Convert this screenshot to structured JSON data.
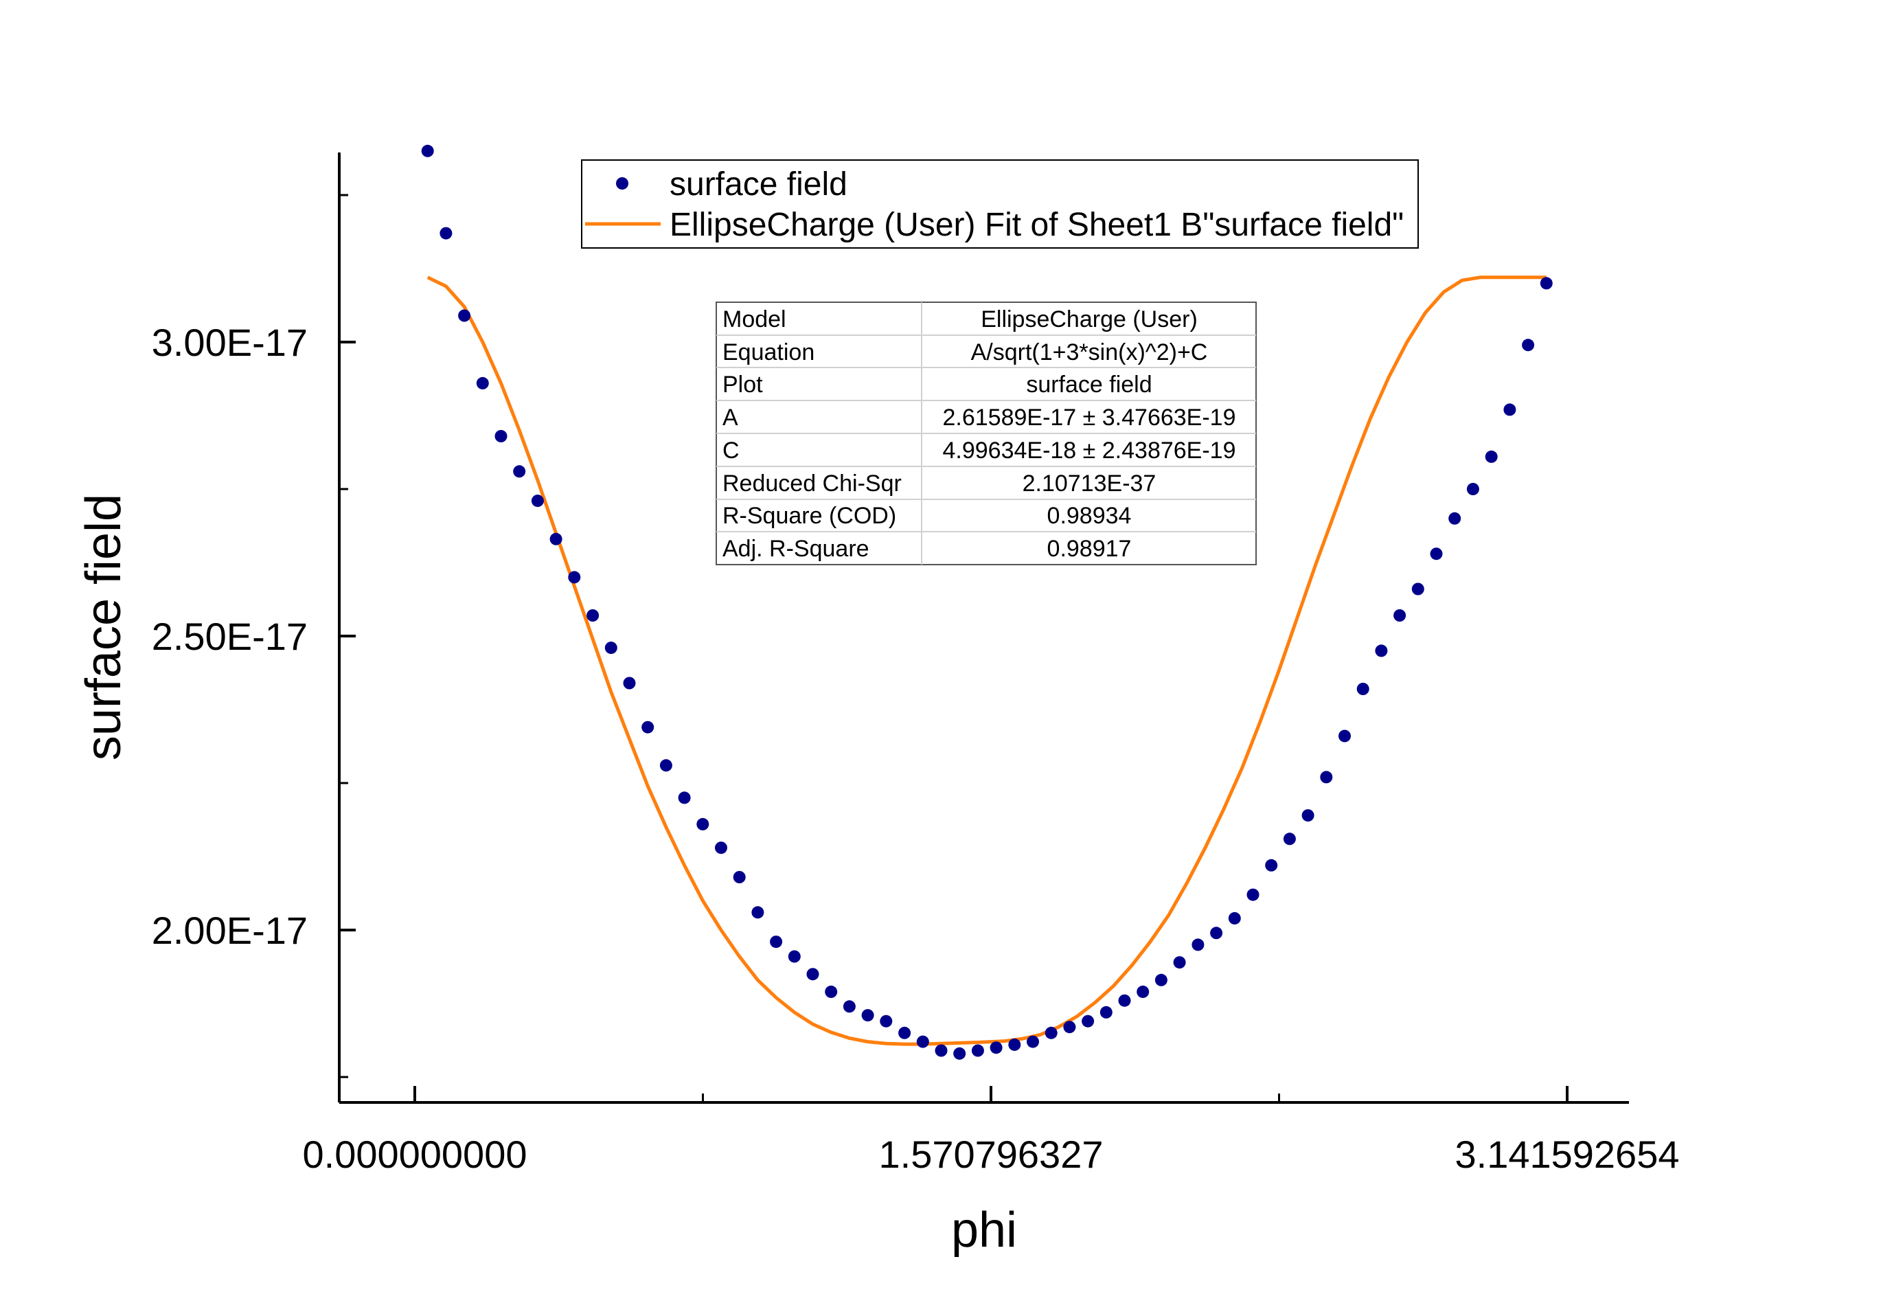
{
  "chart_data": {
    "type": "scatter",
    "xlabel": "phi",
    "ylabel": "surface field",
    "xlim": [
      -0.21,
      3.35
    ],
    "ylim": [
      1.71e-17,
      3.27e-17
    ],
    "x_ticks": [
      0.0,
      1.570796327,
      3.141592654
    ],
    "x_tick_labels": [
      "0.000000000",
      "1.570796327",
      "3.141592654"
    ],
    "x_minor_ticks": [
      0.785398163,
      2.35619449
    ],
    "y_ticks": [
      2e-17,
      2.5e-17,
      3e-17
    ],
    "y_tick_labels": [
      "2.00E-17",
      "2.50E-17",
      "3.00E-17"
    ],
    "y_minor_ticks": [
      1.75e-17,
      2.25e-17,
      2.75e-17,
      3.25e-17
    ],
    "legend": {
      "placement": "top-center",
      "entries": [
        {
          "label": "surface field",
          "kind": "marker",
          "color": "#00008B"
        },
        {
          "label": "EllipseCharge (User) Fit of Sheet1 B\"surface field\"",
          "kind": "line",
          "color": "#FF7F0E"
        }
      ]
    },
    "series": [
      {
        "name": "surface field",
        "kind": "scatter",
        "color": "#00008B",
        "x": [
          0.035,
          0.085,
          0.135,
          0.185,
          0.235,
          0.285,
          0.335,
          0.385,
          0.435,
          0.485,
          0.535,
          0.585,
          0.635,
          0.685,
          0.735,
          0.785,
          0.835,
          0.885,
          0.935,
          0.985,
          1.035,
          1.085,
          1.135,
          1.185,
          1.235,
          1.285,
          1.335,
          1.385,
          1.435,
          1.485,
          1.535,
          1.585,
          1.635,
          1.685,
          1.735,
          1.785,
          1.835,
          1.885,
          1.935,
          1.985,
          2.035,
          2.085,
          2.135,
          2.185,
          2.235,
          2.285,
          2.335,
          2.385,
          2.435,
          2.485,
          2.535,
          2.585,
          2.635,
          2.685,
          2.735,
          2.785,
          2.835,
          2.885,
          2.935,
          2.985,
          3.035,
          3.085
        ],
        "y": [
          3.325e-17,
          3.185e-17,
          3.045e-17,
          2.93e-17,
          2.84e-17,
          2.78e-17,
          2.73e-17,
          2.665e-17,
          2.6e-17,
          2.535e-17,
          2.48e-17,
          2.42e-17,
          2.345e-17,
          2.28e-17,
          2.225e-17,
          2.18e-17,
          2.14e-17,
          2.09e-17,
          2.03e-17,
          1.98e-17,
          1.955e-17,
          1.925e-17,
          1.895e-17,
          1.87e-17,
          1.855e-17,
          1.845e-17,
          1.825e-17,
          1.81e-17,
          1.795e-17,
          1.79e-17,
          1.795e-17,
          1.8e-17,
          1.805e-17,
          1.81e-17,
          1.825e-17,
          1.835e-17,
          1.845e-17,
          1.86e-17,
          1.88e-17,
          1.895e-17,
          1.915e-17,
          1.945e-17,
          1.975e-17,
          1.995e-17,
          2.02e-17,
          2.06e-17,
          2.11e-17,
          2.155e-17,
          2.195e-17,
          2.26e-17,
          2.33e-17,
          2.41e-17,
          2.475e-17,
          2.535e-17,
          2.58e-17,
          2.64e-17,
          2.7e-17,
          2.75e-17,
          2.805e-17,
          2.885e-17,
          2.995e-17,
          3.1e-17
        ]
      },
      {
        "name": "EllipseCharge (User) Fit of Sheet1 B\"surface field\"",
        "kind": "line",
        "color": "#FF7F0E",
        "x": [
          0.035,
          0.085,
          0.135,
          0.185,
          0.235,
          0.285,
          0.335,
          0.385,
          0.435,
          0.485,
          0.535,
          0.585,
          0.635,
          0.685,
          0.735,
          0.785,
          0.835,
          0.885,
          0.935,
          0.985,
          1.035,
          1.085,
          1.135,
          1.185,
          1.235,
          1.285,
          1.335,
          1.385,
          1.435,
          1.485,
          1.535,
          1.5708,
          1.605,
          1.655,
          1.705,
          1.755,
          1.805,
          1.855,
          1.905,
          1.955,
          2.005,
          2.055,
          2.105,
          2.155,
          2.205,
          2.255,
          2.305,
          2.355,
          2.405,
          2.455,
          2.505,
          2.555,
          2.605,
          2.655,
          2.705,
          2.755,
          2.805,
          2.855,
          2.905,
          2.955,
          3.005,
          3.055,
          3.085
        ],
        "y": [
          3.11e-17,
          3.095e-17,
          3.06e-17,
          3e-17,
          2.93e-17,
          2.85e-17,
          2.765e-17,
          2.675e-17,
          2.585e-17,
          2.495e-17,
          2.405e-17,
          2.325e-17,
          2.245e-17,
          2.175e-17,
          2.11e-17,
          2.05e-17,
          2e-17,
          1.955e-17,
          1.915e-17,
          1.885e-17,
          1.86e-17,
          1.84e-17,
          1.826e-17,
          1.816e-17,
          1.81e-17,
          1.807e-17,
          1.806e-17,
          1.806e-17,
          1.807e-17,
          1.808e-17,
          1.809e-17,
          1.81e-17,
          1.811e-17,
          1.815e-17,
          1.822e-17,
          1.835e-17,
          1.853e-17,
          1.877e-17,
          1.905e-17,
          1.94e-17,
          1.98e-17,
          2.025e-17,
          2.08e-17,
          2.14e-17,
          2.205e-17,
          2.275e-17,
          2.355e-17,
          2.44e-17,
          2.53e-17,
          2.62e-17,
          2.705e-17,
          2.79e-17,
          2.87e-17,
          2.94e-17,
          3e-17,
          3.05e-17,
          3.085e-17,
          3.105e-17,
          3.11e-17,
          3.11e-17,
          3.11e-17,
          3.11e-17,
          3.11e-17
        ]
      }
    ],
    "fit_table": {
      "rows": [
        [
          "Model",
          "EllipseCharge (User)"
        ],
        [
          "Equation",
          "A/sqrt(1+3*sin(x)^2)+C"
        ],
        [
          "Plot",
          "surface field"
        ],
        [
          "A",
          "2.61589E-17 ± 3.47663E-19"
        ],
        [
          "C",
          "4.99634E-18 ± 2.43876E-19"
        ],
        [
          "Reduced Chi-Sqr",
          "2.10713E-37"
        ],
        [
          "R-Square (COD)",
          "0.98934"
        ],
        [
          "Adj. R-Square",
          "0.98917"
        ]
      ]
    }
  }
}
